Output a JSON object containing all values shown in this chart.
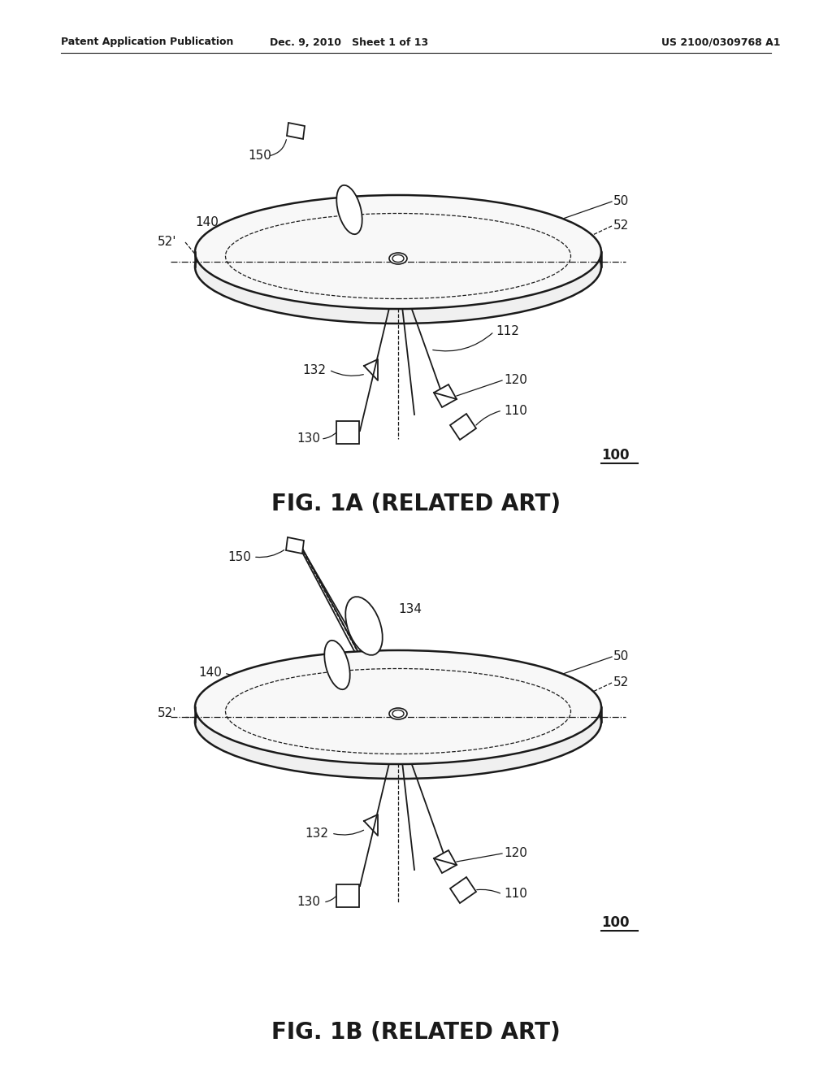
{
  "bg_color": "#ffffff",
  "text_color": "#000000",
  "header_left": "Patent Application Publication",
  "header_center": "Dec. 9, 2010   Sheet 1 of 13",
  "header_right": "US 2100/0309768 A1",
  "fig1a_caption": "FIG. 1A (RELATED ART)",
  "fig1b_caption": "FIG. 1B (RELATED ART)",
  "line_color": "#1a1a1a",
  "label_fs": 11,
  "caption_fs": 20
}
